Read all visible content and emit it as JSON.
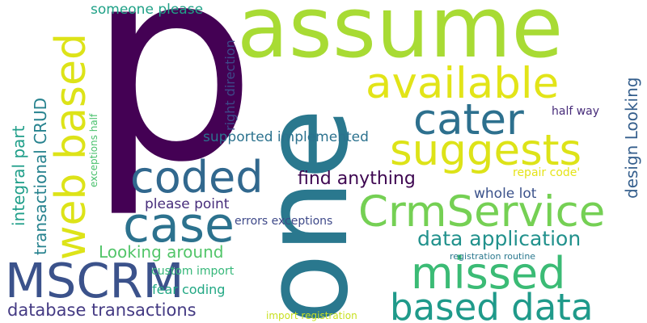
{
  "word_cloud": {
    "words": [
      {
        "text": "p",
        "color": "#440154"
      },
      {
        "text": "assume",
        "color": "#a8db34"
      },
      {
        "text": "one",
        "color": "#2a788e"
      },
      {
        "text": "available",
        "color": "#e2e418"
      },
      {
        "text": "cater",
        "color": "#2d708e"
      },
      {
        "text": "suggests",
        "color": "#dde318"
      },
      {
        "text": "web based",
        "color": "#dde318"
      },
      {
        "text": "coded",
        "color": "#31688e"
      },
      {
        "text": "CrmService",
        "color": "#75d054"
      },
      {
        "text": "case",
        "color": "#2c728e"
      },
      {
        "text": "MSCRM",
        "color": "#3b528b"
      },
      {
        "text": "missed",
        "color": "#3bbb75"
      },
      {
        "text": "based data",
        "color": "#1f9a8a"
      },
      {
        "text": "data application",
        "color": "#21918c"
      },
      {
        "text": "find anything",
        "color": "#3e0751"
      },
      {
        "text": "database transactions",
        "color": "#443a83"
      },
      {
        "text": "integral part",
        "color": "#1f9e89"
      },
      {
        "text": "transactional CRUD",
        "color": "#26828e"
      },
      {
        "text": "design Looking",
        "color": "#355f8d"
      },
      {
        "text": "Looking around",
        "color": "#52c569"
      },
      {
        "text": "supported implemented",
        "color": "#2c728e"
      },
      {
        "text": "please point",
        "color": "#472d7b"
      },
      {
        "text": "whole lot",
        "color": "#3b528b"
      },
      {
        "text": "someone please",
        "color": "#1fa187"
      },
      {
        "text": "right direction",
        "color": "#3e4989"
      },
      {
        "text": "fear coding",
        "color": "#22a884"
      },
      {
        "text": "custom import",
        "color": "#35b779"
      },
      {
        "text": "errors exceptions",
        "color": "#3e4989"
      },
      {
        "text": "repair code'",
        "color": "#e5e419"
      },
      {
        "text": "half way",
        "color": "#472c7a"
      },
      {
        "text": "exceptions half",
        "color": "#4ac16d"
      },
      {
        "text": "registration routine",
        "color": "#2a788e"
      },
      {
        "text": "import registration",
        "color": "#c8e020"
      }
    ]
  }
}
